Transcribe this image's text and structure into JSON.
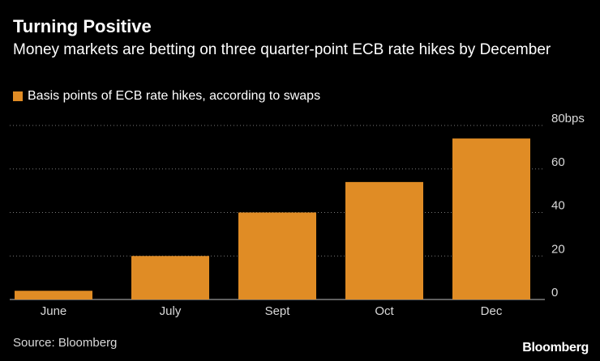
{
  "chart_data": {
    "type": "bar",
    "title": "Turning Positive",
    "subtitle": "Money markets are betting on three quarter-point ECB rate hikes by December",
    "legend": "Basis points of ECB rate hikes, according to swaps",
    "categories": [
      "June",
      "July",
      "Sept",
      "Oct",
      "Dec"
    ],
    "values": [
      4,
      20,
      40,
      54,
      74
    ],
    "ylim": [
      0,
      80
    ],
    "yticks": [
      0,
      20,
      40,
      60,
      80
    ],
    "ytick_labels": [
      "0",
      "20",
      "40",
      "60",
      "80bps"
    ],
    "y_axis_side": "right",
    "grid": true,
    "bar_color": "#e08c25"
  },
  "footer": {
    "source": "Source: Bloomberg",
    "brand": "Bloomberg"
  }
}
